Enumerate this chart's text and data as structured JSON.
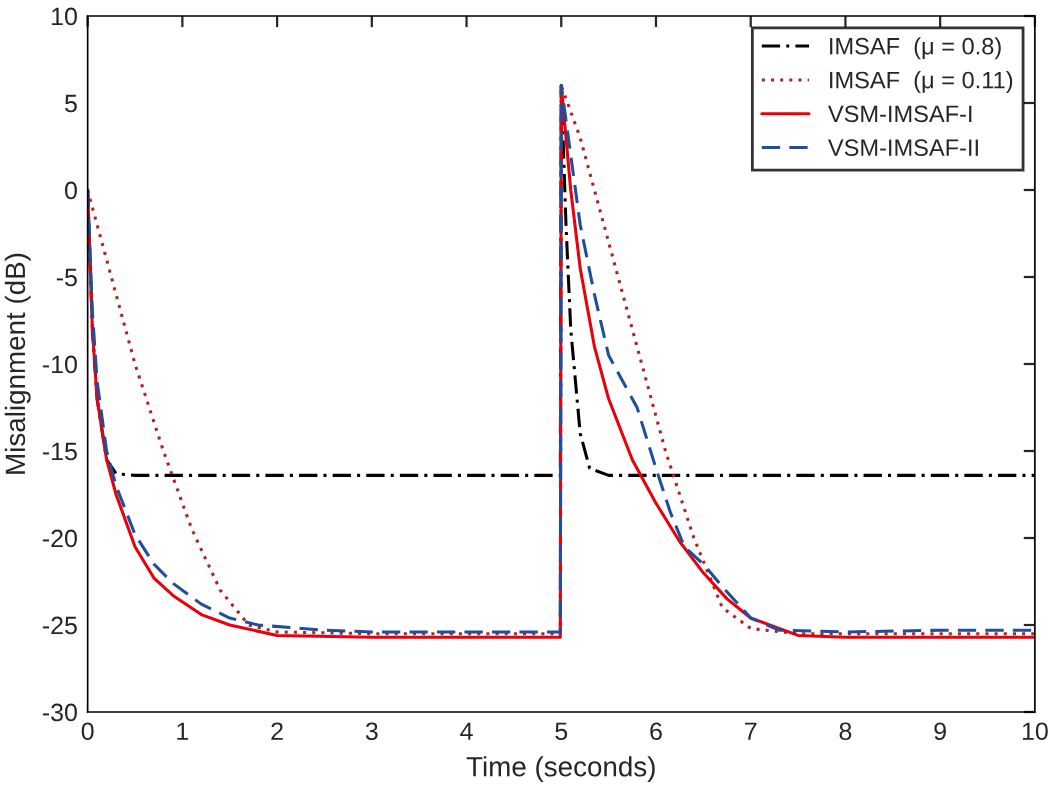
{
  "chart_data": {
    "type": "line",
    "xlabel": "Time (seconds)",
    "ylabel": "Misalignment (dB)",
    "xlim": [
      0,
      10
    ],
    "ylim": [
      -30,
      10
    ],
    "xticks": [
      0,
      1,
      2,
      3,
      4,
      5,
      6,
      7,
      8,
      9,
      10
    ],
    "yticks": [
      -30,
      -25,
      -20,
      -15,
      -10,
      -5,
      0,
      5,
      10
    ],
    "grid": false,
    "legend": "top right",
    "marker": "none",
    "series": [
      {
        "name": "IMSAF  (μ = 0.8)",
        "color": "#000000",
        "line_style": "dashdot",
        "x": [
          0,
          0.05,
          0.1,
          0.2,
          0.3,
          0.5,
          1,
          2,
          3,
          4,
          4.99,
          5,
          5.05,
          5.1,
          5.2,
          5.3,
          5.5,
          6,
          7,
          8,
          9,
          10
        ],
        "values": [
          0,
          -8,
          -12,
          -15.5,
          -16.3,
          -16.4,
          -16.4,
          -16.4,
          -16.4,
          -16.4,
          -16.4,
          6,
          -2,
          -8,
          -14,
          -16,
          -16.4,
          -16.4,
          -16.4,
          -16.4,
          -16.4,
          -16.4
        ]
      },
      {
        "name": "IMSAF  (μ = 0.11)",
        "color": "#b22222",
        "line_style": "dotted",
        "x": [
          0,
          0.2,
          0.5,
          0.8,
          1.1,
          1.4,
          1.7,
          2,
          3,
          4,
          4.99,
          5,
          5.2,
          5.5,
          5.8,
          6.1,
          6.4,
          6.7,
          7,
          7.5,
          8,
          9,
          10
        ],
        "values": [
          0,
          -4,
          -10,
          -15,
          -19.5,
          -23,
          -25,
          -25.4,
          -25.5,
          -25.5,
          -25.5,
          6,
          3,
          -3,
          -9,
          -15,
          -20,
          -24,
          -25.2,
          -25.5,
          -25.5,
          -25.5,
          -25.5
        ]
      },
      {
        "name": "VSM-IMSAF-I",
        "color": "#e8000b",
        "line_style": "solid",
        "x": [
          0,
          0.05,
          0.1,
          0.2,
          0.3,
          0.5,
          0.7,
          0.9,
          1.2,
          1.5,
          2,
          3,
          4,
          4.99,
          5,
          5.1,
          5.2,
          5.35,
          5.5,
          5.75,
          6,
          6.25,
          6.5,
          6.75,
          7,
          7.5,
          8,
          9,
          10
        ],
        "values": [
          0,
          -8,
          -12,
          -15.5,
          -17.5,
          -20.5,
          -22.3,
          -23.3,
          -24.4,
          -25,
          -25.6,
          -25.7,
          -25.7,
          -25.7,
          6,
          0,
          -4.5,
          -9,
          -12,
          -15.5,
          -18,
          -20.2,
          -22,
          -23.5,
          -24.6,
          -25.6,
          -25.7,
          -25.7,
          -25.7
        ]
      },
      {
        "name": "VSM-IMSAF-II",
        "color": "#1f4e9c",
        "line_style": "dashed",
        "x": [
          0,
          0.05,
          0.1,
          0.2,
          0.3,
          0.5,
          0.7,
          0.9,
          1.2,
          1.5,
          1.8,
          2.5,
          3,
          4,
          4.99,
          5,
          5.1,
          5.2,
          5.35,
          5.5,
          5.65,
          5.8,
          6,
          6.15,
          6.3,
          6.5,
          6.7,
          7,
          7.3,
          8,
          9,
          10
        ],
        "values": [
          0,
          -7,
          -11,
          -15,
          -17,
          -19.8,
          -21.5,
          -22.6,
          -23.8,
          -24.6,
          -25,
          -25.3,
          -25.4,
          -25.4,
          -25.4,
          6,
          2,
          -2,
          -6,
          -9.5,
          -11,
          -12.5,
          -16,
          -18.5,
          -20.5,
          -21.5,
          -22.8,
          -24.6,
          -25.3,
          -25.4,
          -25.3,
          -25.3
        ]
      }
    ]
  }
}
